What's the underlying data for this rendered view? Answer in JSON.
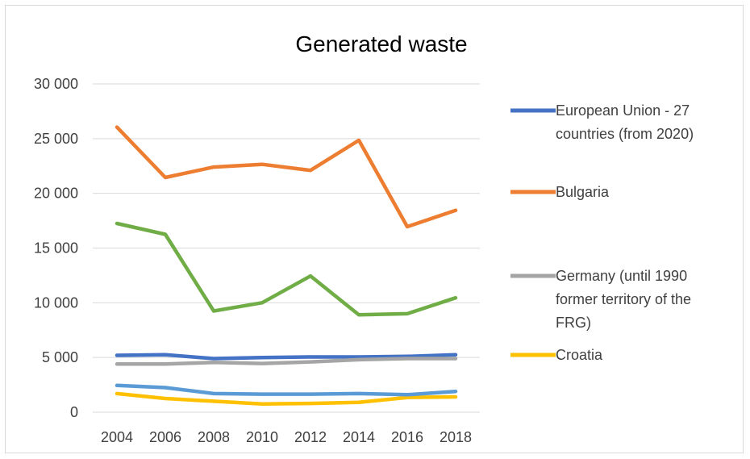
{
  "chart_data": {
    "type": "line",
    "title": "Generated waste",
    "xlabel": "",
    "ylabel": "",
    "x": [
      "2004",
      "2006",
      "2008",
      "2010",
      "2012",
      "2014",
      "2016",
      "2018"
    ],
    "ylim": [
      0,
      30000
    ],
    "yticks": [
      0,
      5000,
      10000,
      15000,
      20000,
      25000,
      30000
    ],
    "ytick_labels": [
      "0",
      "5 000",
      "10 000",
      "15 000",
      "20 000",
      "25 000",
      "30 000"
    ],
    "grid": true,
    "legend_position": "right",
    "series": [
      {
        "name": "European Union - 27 countries (from 2020)",
        "legend_lines": [
          "European Union - 27",
          "countries (from 2020)"
        ],
        "color": "#4472c4",
        "values": [
          5200,
          5250,
          4900,
          5000,
          5050,
          5050,
          5100,
          5250
        ]
      },
      {
        "name": "Bulgaria",
        "legend_lines": [
          "Bulgaria"
        ],
        "color": "#ed7d31",
        "values": [
          26050,
          21450,
          22400,
          22650,
          22100,
          24850,
          16950,
          18450
        ]
      },
      {
        "name": "Germany (until 1990 former territory of the FRG)",
        "legend_lines": [
          "Germany (until 1990",
          "former territory of the",
          "FRG)"
        ],
        "color": "#a5a5a5",
        "values": [
          4400,
          4400,
          4550,
          4450,
          4600,
          4800,
          4900,
          4900
        ]
      },
      {
        "name": "Croatia",
        "legend_lines": [
          "Croatia"
        ],
        "color": "#ffc000",
        "values": [
          1700,
          1250,
          1000,
          750,
          800,
          900,
          1350,
          1400
        ]
      },
      {
        "name": "",
        "legend_lines": [],
        "color": "#5b9bd5",
        "values": [
          2450,
          2250,
          1700,
          1650,
          1650,
          1700,
          1600,
          1900
        ]
      },
      {
        "name": "",
        "legend_lines": [],
        "color": "#70ad47",
        "values": [
          17250,
          16250,
          9250,
          10000,
          12450,
          8900,
          9000,
          10450
        ]
      }
    ]
  }
}
